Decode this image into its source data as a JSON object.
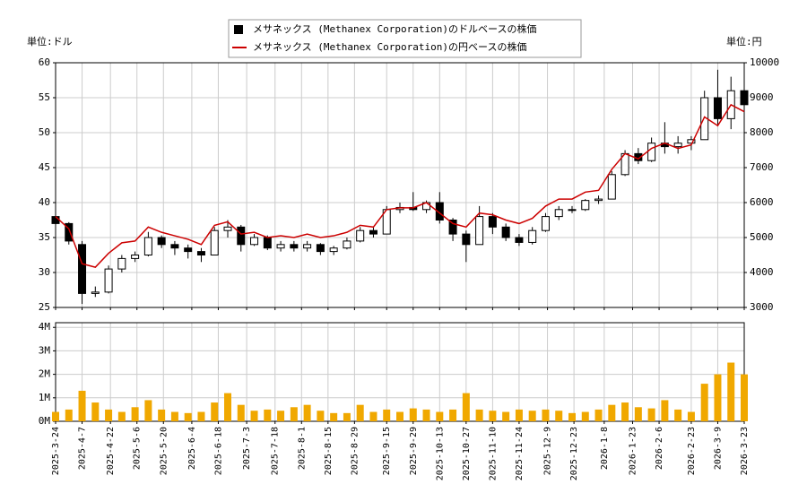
{
  "chart_data": [
    {
      "type": "candlestick",
      "ylabel": "単位:ドル",
      "y2label": "単位:円",
      "x": [
        "2025-3-24",
        "2025-3-31",
        "2025-4-7",
        "2025-4-14",
        "2025-4-21",
        "2025-4-28",
        "2025-5-5",
        "2025-5-12",
        "2025-5-19",
        "2025-5-26",
        "2025-6-2",
        "2025-6-9",
        "2025-6-16",
        "2025-6-23",
        "2025-6-30",
        "2025-7-7",
        "2025-7-14",
        "2025-7-21",
        "2025-7-28",
        "2025-8-4",
        "2025-8-11",
        "2025-8-18",
        "2025-8-25",
        "2025-9-1",
        "2025-9-8",
        "2025-9-15",
        "2025-9-22",
        "2025-9-29",
        "2025-10-6",
        "2025-10-13",
        "2025-10-20",
        "2025-10-27",
        "2025-11-3",
        "2025-11-10",
        "2025-11-17",
        "2025-11-24",
        "2025-12-1",
        "2025-12-8",
        "2025-12-15",
        "2025-12-22",
        "2025-12-29",
        "2026-1-5",
        "2026-1-12",
        "2026-1-19",
        "2026-1-26",
        "2026-2-2",
        "2026-2-9",
        "2026-2-16",
        "2026-2-23",
        "2026-3-2",
        "2026-3-9",
        "2026-3-16",
        "2026-3-23"
      ],
      "xlim": [
        "2025-3-24",
        "2026-3-23"
      ],
      "series": [
        {
          "name": "メサネックス (Methanex Corporation)のドルベースの株価",
          "color": "#000000",
          "open": [
            38,
            37,
            34,
            27,
            27.2,
            30.5,
            32,
            32.5,
            35,
            34,
            33.5,
            33,
            32.5,
            36,
            36.5,
            34,
            35,
            33.5,
            34,
            33.5,
            34,
            33,
            33.5,
            34.5,
            36,
            35.5,
            39,
            39.3,
            39,
            40,
            37.5,
            35.5,
            34,
            38,
            36.5,
            35,
            34.3,
            36,
            38,
            39,
            39,
            40.3,
            40.5,
            44,
            47,
            46,
            48.5,
            48,
            48.5,
            49,
            55,
            52,
            56
          ],
          "high": [
            38.5,
            37.2,
            34.5,
            28,
            31,
            32.5,
            33,
            35.8,
            35.3,
            34.5,
            34,
            33.5,
            36.5,
            37.5,
            36.8,
            35.5,
            35.3,
            34.5,
            34.5,
            34.5,
            34.2,
            33.8,
            35,
            36.5,
            36.5,
            39.5,
            40,
            41.5,
            40.3,
            41.5,
            37.8,
            36,
            39.5,
            38.5,
            37,
            35.5,
            36.5,
            38.5,
            39.5,
            39.5,
            40.5,
            41,
            44.5,
            47.5,
            47.8,
            49.3,
            51.5,
            49.5,
            49.5,
            56,
            59,
            58,
            57
          ],
          "low": [
            36.8,
            34,
            25.5,
            26.5,
            27,
            30,
            31.5,
            32.3,
            33.5,
            32.5,
            32,
            31.5,
            32.5,
            35,
            33,
            33.8,
            33.2,
            33,
            33,
            33,
            32.5,
            32.5,
            33.3,
            34.3,
            35,
            35.5,
            38.5,
            38.8,
            38.5,
            37,
            34.5,
            31.5,
            34,
            35.5,
            34.5,
            33.8,
            34,
            35.8,
            37.5,
            38.5,
            38.8,
            39.8,
            40.5,
            43.8,
            45.5,
            45.8,
            47,
            47,
            47.5,
            49,
            51,
            50.5,
            53.5
          ],
          "close": [
            37,
            34.5,
            27,
            27.2,
            30.5,
            32,
            32.5,
            35,
            34,
            33.5,
            33,
            32.5,
            36,
            36.5,
            34,
            35,
            33.5,
            34,
            33.5,
            34,
            33,
            33.5,
            34.5,
            36,
            35.5,
            39,
            39.3,
            39,
            40,
            37.5,
            35.5,
            34,
            38,
            36.5,
            35,
            34.3,
            36,
            38,
            39,
            39,
            40.3,
            40.5,
            44,
            47,
            46,
            48.5,
            48,
            48.5,
            49,
            55,
            52,
            56,
            54
          ]
        },
        {
          "name": "メサネックス (Methanex Corporation)の円ベースの株価",
          "color": "#cc0000",
          "axis": "y2",
          "values": [
            5600,
            5250,
            4250,
            4150,
            4550,
            4850,
            4900,
            5300,
            5150,
            5050,
            4950,
            4800,
            5350,
            5450,
            5100,
            5150,
            5000,
            5050,
            5000,
            5100,
            5000,
            5050,
            5150,
            5350,
            5300,
            5800,
            5850,
            5850,
            6000,
            5700,
            5400,
            5300,
            5700,
            5650,
            5500,
            5400,
            5550,
            5900,
            6100,
            6100,
            6300,
            6350,
            6950,
            7400,
            7250,
            7550,
            7700,
            7550,
            7650,
            8450,
            8200,
            8800,
            8600
          ]
        }
      ],
      "ylim": [
        25,
        60
      ],
      "yticks": [
        25,
        30,
        35,
        40,
        45,
        50,
        55,
        60
      ],
      "y2lim": [
        3000,
        10000
      ],
      "y2ticks": [
        3000,
        4000,
        5000,
        6000,
        7000,
        8000,
        9000,
        10000
      ],
      "grid": true
    },
    {
      "type": "bar",
      "color": "#f0a800",
      "values": [
        400000,
        500000,
        1300000,
        800000,
        500000,
        400000,
        600000,
        900000,
        500000,
        400000,
        350000,
        400000,
        800000,
        1200000,
        700000,
        450000,
        500000,
        450000,
        600000,
        700000,
        450000,
        350000,
        350000,
        700000,
        400000,
        500000,
        400000,
        550000,
        500000,
        400000,
        500000,
        1200000,
        500000,
        450000,
        400000,
        500000,
        450000,
        500000,
        450000,
        350000,
        400000,
        500000,
        700000,
        800000,
        600000,
        550000,
        900000,
        500000,
        400000,
        1600000,
        2000000,
        2500000,
        2000000
      ],
      "ylim": [
        0,
        4200000
      ],
      "yticks": [
        {
          "value": 0,
          "label": "0M"
        },
        {
          "value": 1000000,
          "label": "1M"
        },
        {
          "value": 2000000,
          "label": "2M"
        },
        {
          "value": 3000000,
          "label": "3M"
        },
        {
          "value": 4000000,
          "label": "4M"
        }
      ],
      "xticks": [
        "2025-3-24",
        "2025-4-7",
        "2025-4-22",
        "2025-5-6",
        "2025-5-20",
        "2025-6-4",
        "2025-6-18",
        "2025-7-3",
        "2025-7-18",
        "2025-8-1",
        "2025-8-15",
        "2025-8-29",
        "2025-9-15",
        "2025-9-29",
        "2025-10-13",
        "2025-10-27",
        "2025-11-10",
        "2025-11-24",
        "2025-12-9",
        "2025-12-23",
        "2026-1-8",
        "2026-1-23",
        "2026-2-6",
        "2026-2-23",
        "2026-3-9",
        "2026-3-23"
      ],
      "grid": true
    }
  ]
}
